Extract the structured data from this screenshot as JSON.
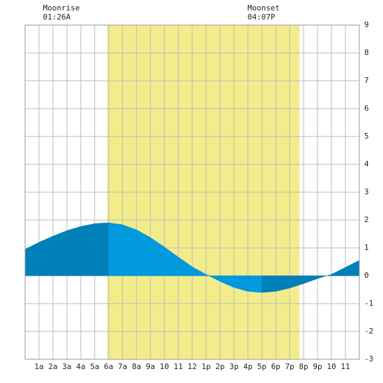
{
  "chart_data": {
    "type": "area",
    "x": [
      0,
      1,
      2,
      3,
      4,
      5,
      6,
      7,
      8,
      9,
      10,
      11,
      12,
      13,
      14,
      15,
      16,
      17,
      18,
      19,
      20,
      21,
      22,
      23,
      24
    ],
    "series": [
      {
        "values": [
          0.95,
          1.2,
          1.42,
          1.62,
          1.77,
          1.87,
          1.9,
          1.83,
          1.65,
          1.37,
          1.03,
          0.67,
          0.32,
          0.05,
          -0.2,
          -0.42,
          -0.56,
          -0.6,
          -0.56,
          -0.44,
          -0.28,
          -0.1,
          0.05,
          0.3,
          0.55
        ],
        "color": "#0099dd",
        "rising_color": "#0080b8"
      }
    ],
    "daylight": [
      5.9,
      19.7
    ],
    "daylight_color": "#f3ec8a",
    "xlim": [
      0,
      24
    ],
    "xticks": [
      {
        "value": 1,
        "label": "1a"
      },
      {
        "value": 2,
        "label": "2a"
      },
      {
        "value": 3,
        "label": "3a"
      },
      {
        "value": 4,
        "label": "4a"
      },
      {
        "value": 5,
        "label": "5a"
      },
      {
        "value": 6,
        "label": "6a"
      },
      {
        "value": 7,
        "label": "7a"
      },
      {
        "value": 8,
        "label": "8a"
      },
      {
        "value": 9,
        "label": "9a"
      },
      10,
      11,
      12,
      {
        "value": 13,
        "label": "1p"
      },
      {
        "value": 14,
        "label": "2p"
      },
      {
        "value": 15,
        "label": "3p"
      },
      {
        "value": 16,
        "label": "4p"
      },
      {
        "value": 17,
        "label": "5p"
      },
      {
        "value": 18,
        "label": "6p"
      },
      {
        "value": 19,
        "label": "7p"
      },
      {
        "value": 20,
        "label": "8p"
      },
      {
        "value": 21,
        "label": "9p"
      },
      {
        "value": 22,
        "label": "10"
      },
      {
        "value": 23,
        "label": "11"
      }
    ],
    "ylim": [
      -3,
      9
    ],
    "yticks": [
      -3,
      -2,
      -1,
      0,
      1,
      2,
      3,
      4,
      5,
      6,
      7,
      8,
      9
    ],
    "grid": true,
    "annotations": [
      {
        "label": "Moonrise",
        "time": "01:26A",
        "x": 1.43
      },
      {
        "label": "Moonset",
        "time": "04:07P",
        "x": 16.12
      }
    ]
  }
}
